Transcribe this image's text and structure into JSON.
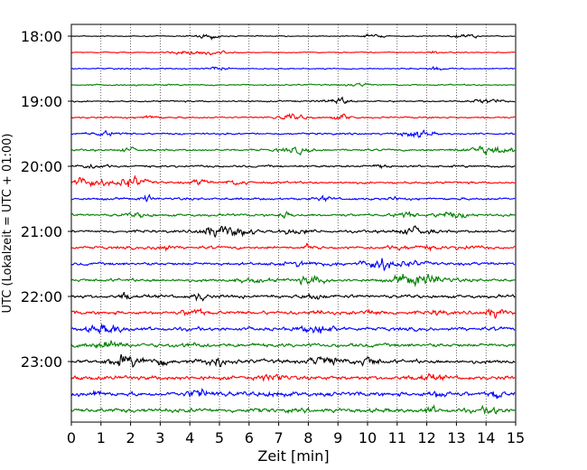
{
  "chart_data": {
    "type": "line",
    "title": "",
    "xlabel": "Zeit  [min]",
    "ylabel": "UTC (Lokalzeit = UTC + 01:00)",
    "xlim": [
      0,
      15
    ],
    "x_ticks": [
      0,
      1,
      2,
      3,
      4,
      5,
      6,
      7,
      8,
      9,
      10,
      11,
      12,
      13,
      14,
      15
    ],
    "x_tick_labels": [
      "0",
      "1",
      "2",
      "3",
      "4",
      "5",
      "6",
      "7",
      "8",
      "9",
      "10",
      "11",
      "12",
      "13",
      "14",
      "15"
    ],
    "y_tick_labels": [
      "18:00",
      "19:00",
      "20:00",
      "21:00",
      "22:00",
      "23:00"
    ],
    "grid_x": true,
    "trace_colors": [
      "#000000",
      "#ff0000",
      "#0000ff",
      "#008000"
    ],
    "traces": [
      {
        "start": "18:00",
        "color": "#000000"
      },
      {
        "start": "18:15",
        "color": "#ff0000"
      },
      {
        "start": "18:30",
        "color": "#0000ff"
      },
      {
        "start": "18:45",
        "color": "#008000"
      },
      {
        "start": "19:00",
        "color": "#000000"
      },
      {
        "start": "19:15",
        "color": "#ff0000"
      },
      {
        "start": "19:30",
        "color": "#0000ff"
      },
      {
        "start": "19:45",
        "color": "#008000"
      },
      {
        "start": "20:00",
        "color": "#000000"
      },
      {
        "start": "20:15",
        "color": "#ff0000"
      },
      {
        "start": "20:30",
        "color": "#0000ff"
      },
      {
        "start": "20:45",
        "color": "#008000"
      },
      {
        "start": "21:00",
        "color": "#000000"
      },
      {
        "start": "21:15",
        "color": "#ff0000"
      },
      {
        "start": "21:30",
        "color": "#0000ff"
      },
      {
        "start": "21:45",
        "color": "#008000"
      },
      {
        "start": "22:00",
        "color": "#000000"
      },
      {
        "start": "22:15",
        "color": "#ff0000"
      },
      {
        "start": "22:30",
        "color": "#0000ff"
      },
      {
        "start": "22:45",
        "color": "#008000"
      },
      {
        "start": "23:00",
        "color": "#000000"
      },
      {
        "start": "23:15",
        "color": "#ff0000"
      },
      {
        "start": "23:30",
        "color": "#0000ff"
      },
      {
        "start": "23:45",
        "color": "#008000"
      }
    ]
  }
}
